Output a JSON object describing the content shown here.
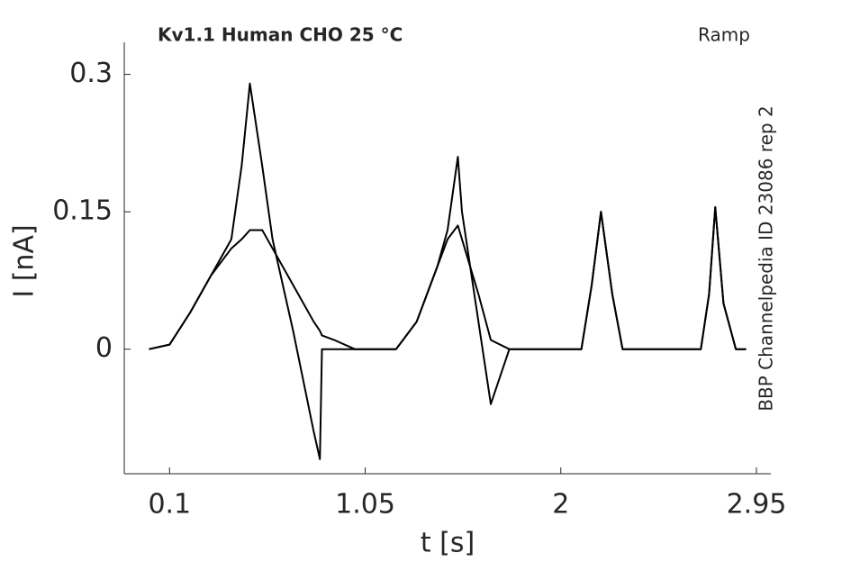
{
  "chart_data": {
    "type": "line",
    "title": "Kv1.1  Human  CHO  25 °C",
    "annotations": [
      "Ramp",
      "BBP Channelpedia ID 23086 rep 2"
    ],
    "xlabel": "t [s]",
    "ylabel": "I [nA]",
    "x": [
      0,
      0.1,
      0.2,
      0.3,
      0.4,
      0.45,
      0.49,
      0.55,
      0.6,
      0.7,
      0.8,
      0.83,
      0.84,
      0.9,
      1.0,
      1.2,
      1.3,
      1.4,
      1.45,
      1.5,
      1.52,
      1.6,
      1.66,
      1.75,
      1.9,
      2.1,
      2.15,
      2.195,
      2.25,
      2.3,
      2.5,
      2.68,
      2.72,
      2.75,
      2.79,
      2.85,
      2.9
    ],
    "series": [
      {
        "color": "#000000",
        "values": [
          0,
          0.005,
          0.04,
          0.08,
          0.12,
          0.2,
          0.29,
          0.2,
          0.12,
          0.02,
          -0.09,
          -0.12,
          0,
          0,
          0,
          0,
          0.03,
          0.09,
          0.13,
          0.21,
          0.15,
          0.03,
          -0.06,
          0,
          0,
          0,
          0.07,
          0.15,
          0.06,
          0,
          0,
          0,
          0.06,
          0.155,
          0.05,
          0,
          0
        ]
      },
      {
        "color": "#000000",
        "values": [
          0,
          0.005,
          0.04,
          0.08,
          0.11,
          0.12,
          0.13,
          0.13,
          0.11,
          0.07,
          0.03,
          0.02,
          0.015,
          0.01,
          0,
          0,
          0.03,
          0.09,
          0.12,
          0.135,
          0.12,
          0.06,
          0.01,
          0,
          0,
          0,
          0.07,
          0.15,
          0.06,
          0,
          0,
          0,
          0.06,
          0.155,
          0.05,
          0,
          0
        ]
      }
    ],
    "xlim": [
      -0.12,
      3.02
    ],
    "ylim": [
      -0.136,
      0.335
    ],
    "xticks": [
      0.1,
      1.05,
      2,
      2.95
    ],
    "yticks": [
      0,
      0.15,
      0.3
    ]
  }
}
